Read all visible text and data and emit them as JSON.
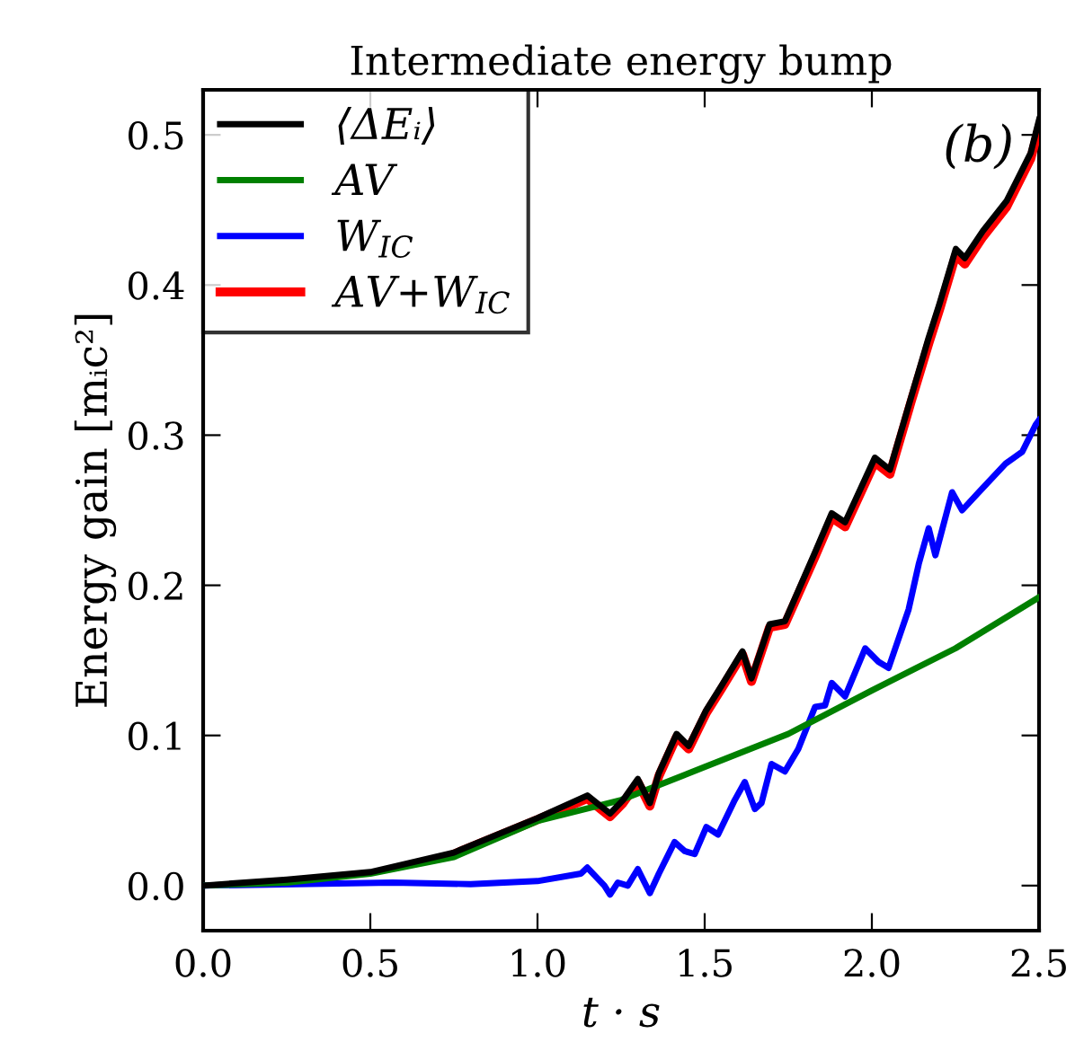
{
  "chart_data": {
    "type": "line",
    "title": "Intermediate energy bump",
    "xlabel": "t · s",
    "ylabel": "Energy gain [mᵢc²]",
    "annotations": [
      "(b)"
    ],
    "xlim": [
      0,
      2.5
    ],
    "xticks": [
      {
        "value": 0,
        "label": "0.0"
      },
      0.5,
      {
        "value": 1,
        "label": "1.0"
      },
      1.5,
      {
        "value": 2,
        "label": "2.0"
      },
      2.5
    ],
    "ylim": [
      -0.03,
      0.53
    ],
    "yticks": [
      {
        "value": 0,
        "label": "0.0"
      },
      0.1,
      0.2,
      0.3,
      0.4,
      0.5
    ],
    "grid": false,
    "legend": "top left",
    "series": [
      {
        "name": "⟨ΔEᵢ⟩",
        "color": "#000000",
        "x": [
          0,
          0.25,
          0.5,
          0.75,
          1.0,
          1.149,
          1.217,
          1.256,
          1.3,
          1.336,
          1.363,
          1.416,
          1.452,
          1.505,
          1.55,
          1.613,
          1.64,
          1.694,
          1.74,
          1.83,
          1.88,
          1.92,
          2.009,
          2.054,
          2.117,
          2.17,
          2.203,
          2.251,
          2.278,
          2.332,
          2.403,
          2.475,
          2.5
        ],
        "values": [
          0,
          0.004,
          0.009,
          0.022,
          0.045,
          0.06,
          0.048,
          0.057,
          0.071,
          0.055,
          0.075,
          0.101,
          0.093,
          0.117,
          0.133,
          0.156,
          0.138,
          0.174,
          0.176,
          0.222,
          0.248,
          0.242,
          0.285,
          0.277,
          0.325,
          0.365,
          0.388,
          0.424,
          0.418,
          0.436,
          0.456,
          0.488,
          0.51
        ]
      },
      {
        "name": "AV",
        "color": "#008000",
        "x": [
          0,
          0.25,
          0.5,
          0.75,
          1.0,
          1.25,
          1.5,
          1.75,
          2.0,
          2.25,
          2.5
        ],
        "values": [
          0,
          0.002,
          0.008,
          0.019,
          0.043,
          0.057,
          0.079,
          0.101,
          0.13,
          0.158,
          0.192
        ]
      },
      {
        "name": "W$_{IC}$",
        "color": "#0000ff",
        "x": [
          0,
          0.566,
          0.8,
          1.0,
          1.13,
          1.149,
          1.2,
          1.217,
          1.24,
          1.27,
          1.3,
          1.336,
          1.363,
          1.41,
          1.44,
          1.47,
          1.505,
          1.54,
          1.59,
          1.62,
          1.65,
          1.67,
          1.7,
          1.74,
          1.78,
          1.83,
          1.86,
          1.88,
          1.92,
          1.98,
          2.02,
          2.05,
          2.11,
          2.14,
          2.17,
          2.19,
          2.24,
          2.27,
          2.32,
          2.4,
          2.45,
          2.49,
          2.5
        ],
        "values": [
          0,
          0.002,
          0.001,
          0.003,
          0.008,
          0.012,
          0.0,
          -0.006,
          0.002,
          0.0,
          0.011,
          -0.005,
          0.008,
          0.029,
          0.023,
          0.021,
          0.039,
          0.034,
          0.057,
          0.069,
          0.051,
          0.055,
          0.081,
          0.076,
          0.091,
          0.119,
          0.12,
          0.135,
          0.126,
          0.158,
          0.149,
          0.145,
          0.184,
          0.214,
          0.238,
          0.22,
          0.262,
          0.25,
          0.262,
          0.281,
          0.289,
          0.307,
          0.31
        ]
      },
      {
        "name": "AV+W$_{IC}$",
        "color": "#ff0000",
        "x": [
          0.75,
          1.0,
          1.149,
          1.217,
          1.256,
          1.3,
          1.336,
          1.363,
          1.416,
          1.452,
          1.505,
          1.55,
          1.613,
          1.64,
          1.694,
          1.74,
          1.83,
          1.88,
          1.92,
          2.009,
          2.054,
          2.117,
          2.17,
          2.203,
          2.251,
          2.278,
          2.332,
          2.403,
          2.475,
          2.5
        ],
        "values": [
          0.021,
          0.044,
          0.058,
          0.046,
          0.055,
          0.069,
          0.053,
          0.073,
          0.099,
          0.091,
          0.115,
          0.131,
          0.154,
          0.136,
          0.172,
          0.174,
          0.219,
          0.245,
          0.239,
          0.282,
          0.274,
          0.322,
          0.361,
          0.384,
          0.42,
          0.414,
          0.432,
          0.452,
          0.484,
          0.505
        ]
      }
    ]
  }
}
